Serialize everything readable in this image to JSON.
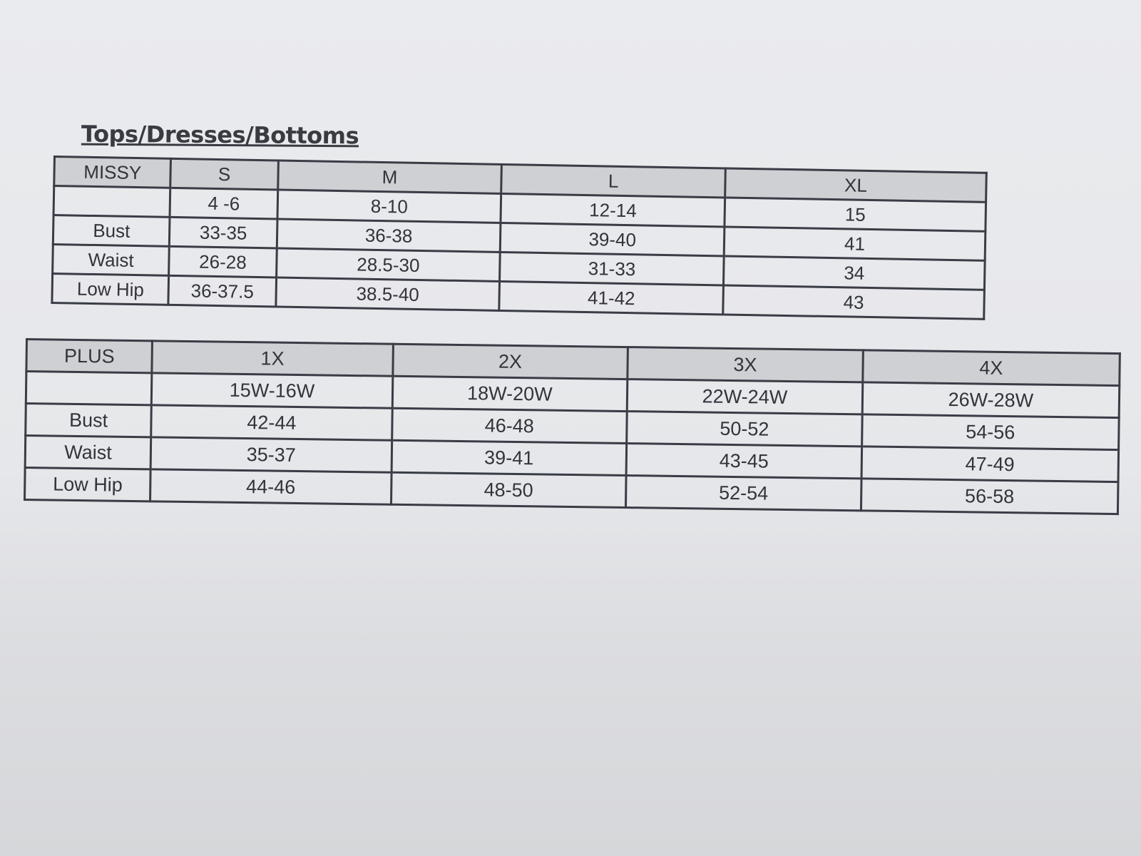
{
  "title": "Tops/Dresses/Bottoms",
  "missy": {
    "header": [
      "MISSY",
      "S",
      "M",
      "L",
      "XL"
    ],
    "rows": [
      [
        "",
        "4   -6",
        "8-10",
        "12-14",
        "15"
      ],
      [
        "Bust",
        "33-35",
        "36-38",
        "39-40",
        "41"
      ],
      [
        "Waist",
        "26-28",
        "28.5-30",
        "31-33",
        "34"
      ],
      [
        "Low Hip",
        "36-37.5",
        "38.5-40",
        "41-42",
        "43"
      ]
    ]
  },
  "plus": {
    "header": [
      "PLUS",
      "1X",
      "2X",
      "3X",
      "4X"
    ],
    "rows": [
      [
        "",
        "15W-16W",
        "18W-20W",
        "22W-24W",
        "26W-28W"
      ],
      [
        "Bust",
        "42-44",
        "46-48",
        "50-52",
        "54-56"
      ],
      [
        "Waist",
        "35-37",
        "39-41",
        "43-45",
        "47-49"
      ],
      [
        "Low Hip",
        "44-46",
        "48-50",
        "52-54",
        "56-58"
      ]
    ]
  },
  "colors": {
    "header_fill": "#cfd0d3",
    "border": "#3a3c46",
    "paper": "#e8e9ec"
  }
}
